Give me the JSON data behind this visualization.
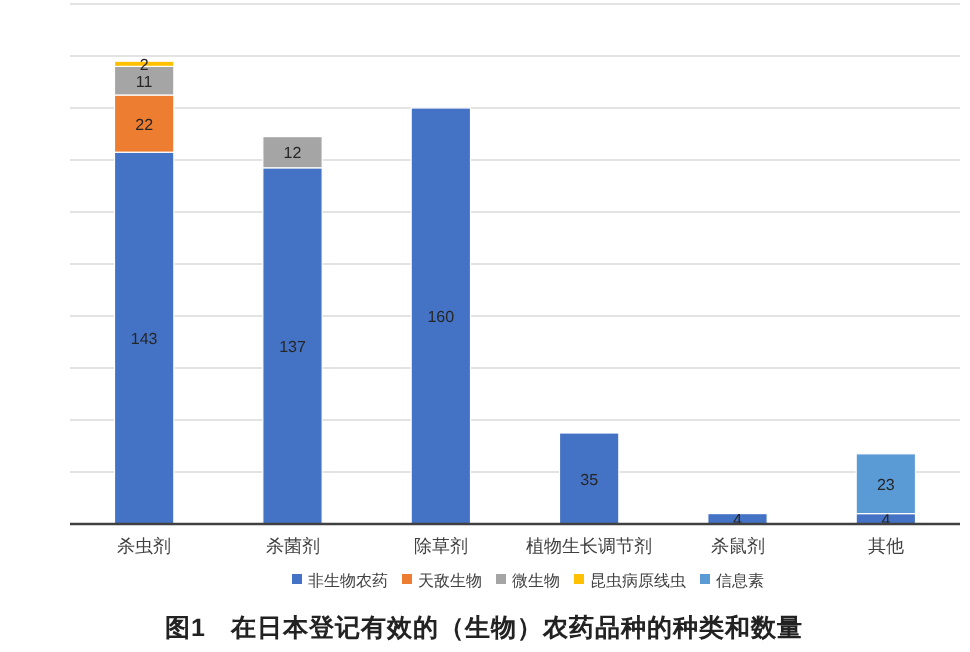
{
  "chart_data": {
    "type": "bar",
    "stacked": true,
    "title": "图1　在日本登记有效的（生物）农药品种的种类和数量",
    "categories": [
      "杀虫剂",
      "杀菌剂",
      "除草剂",
      "植物生长调节剂",
      "杀鼠剂",
      "其他"
    ],
    "series": [
      {
        "name": "非生物农药",
        "color": "#4472c4",
        "values": [
          143,
          137,
          160,
          35,
          4,
          4
        ]
      },
      {
        "name": "天敌生物",
        "color": "#ed7d31",
        "values": [
          22,
          null,
          null,
          null,
          null,
          null
        ]
      },
      {
        "name": "微生物",
        "color": "#a5a5a5",
        "values": [
          11,
          12,
          null,
          null,
          null,
          null
        ]
      },
      {
        "name": "昆虫病原线虫",
        "color": "#ffc000",
        "values": [
          2,
          null,
          null,
          null,
          null,
          null
        ]
      },
      {
        "name": "信息素",
        "color": "#5b9bd5",
        "values": [
          null,
          null,
          null,
          null,
          null,
          23
        ]
      }
    ],
    "ylim": [
      0,
      200
    ],
    "yticks": [
      {
        "value": 0,
        "label": null
      },
      {
        "value": 20,
        "label": null
      },
      {
        "value": 40,
        "label": null
      },
      {
        "value": 60,
        "label": null
      },
      {
        "value": 80,
        "label": null
      },
      {
        "value": 100,
        "label": null
      },
      {
        "value": 120,
        "label": null
      },
      {
        "value": 140,
        "label": null
      },
      {
        "value": 160,
        "label": null
      },
      {
        "value": 180,
        "label": null
      },
      {
        "value": 200,
        "label": null
      }
    ],
    "tick_labels": "x",
    "grid": "y",
    "legend": "bottom",
    "data_labels": true
  }
}
